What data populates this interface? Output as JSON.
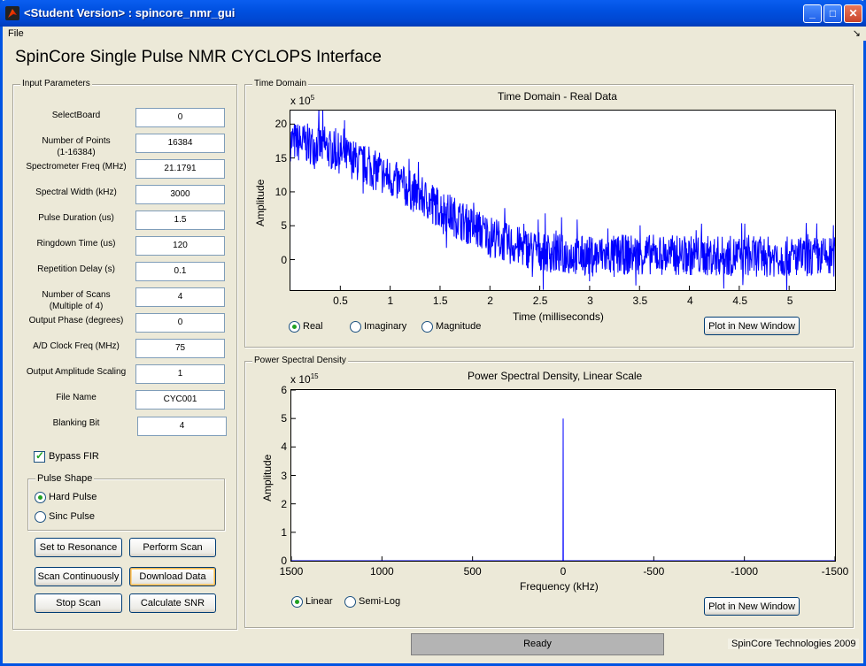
{
  "window": {
    "title": "<Student Version> : spincore_nmr_gui",
    "min": "_",
    "max": "□",
    "close": "✕"
  },
  "menu": {
    "file": "File",
    "arrow": "↘"
  },
  "app_title": "SpinCore Single Pulse NMR CYCLOPS Interface",
  "input_panel": {
    "label": "Input Parameters",
    "params": [
      {
        "label": "SelectBoard",
        "value": "0"
      },
      {
        "label": "Number of Points\n(1-16384)",
        "value": "16384"
      },
      {
        "label": "Spectrometer Freq (MHz)",
        "value": "21.1791"
      },
      {
        "label": "Spectral Width (kHz)",
        "value": "3000"
      },
      {
        "label": "Pulse Duration (us)",
        "value": "1.5"
      },
      {
        "label": "Ringdown Time (us)",
        "value": "120"
      },
      {
        "label": "Repetition Delay (s)",
        "value": "0.1"
      },
      {
        "label": "Number of Scans\n(Multiple of 4)",
        "value": "4"
      },
      {
        "label": "Output Phase (degrees)",
        "value": "0"
      },
      {
        "label": "A/D Clock Freq (MHz)",
        "value": "75"
      },
      {
        "label": "Output Amplitude Scaling",
        "value": "1"
      },
      {
        "label": "File Name",
        "value": "CYC001"
      },
      {
        "label": "Blanking Bit",
        "value": "4"
      }
    ],
    "bypass_fir": {
      "label": "Bypass FIR",
      "checked": true
    },
    "pulse_shape": {
      "label": "Pulse Shape",
      "options": [
        "Hard Pulse",
        "Sinc Pulse"
      ],
      "selected": "Hard Pulse"
    },
    "buttons": {
      "set_resonance": "Set to Resonance",
      "perform_scan": "Perform Scan",
      "scan_continuously": "Scan Continuously",
      "download_data": "Download Data",
      "stop_scan": "Stop Scan",
      "calculate_snr": "Calculate SNR"
    }
  },
  "time_panel": {
    "label": "Time Domain",
    "radio_options": [
      "Real",
      "Imaginary",
      "Magnitude"
    ],
    "selected": "Real",
    "plot_button": "Plot in New Window"
  },
  "psd_panel": {
    "label": "Power Spectral Density",
    "radio_options": [
      "Linear",
      "Semi-Log"
    ],
    "selected": "Linear",
    "plot_button": "Plot in New Window"
  },
  "status": "Ready",
  "credit": "SpinCore Technologies 2009",
  "chart_data": [
    {
      "type": "line",
      "title": "Time Domain - Real Data",
      "xlabel": "Time (milliseconds)",
      "ylabel": "Amplitude",
      "y_exponent_label": "x 10",
      "y_exponent": "5",
      "xlim": [
        0,
        5.46
      ],
      "ylim": [
        -4.5,
        22
      ],
      "xticks": [
        "0.5",
        "1",
        "1.5",
        "2",
        "2.5",
        "3",
        "3.5",
        "4",
        "4.5",
        "5"
      ],
      "yticks": [
        "20",
        "15",
        "10",
        "5",
        "0"
      ],
      "color": "#0000ff",
      "envelope": {
        "x": [
          0,
          0.3,
          0.6,
          1.0,
          1.4,
          1.8,
          2.2,
          2.6,
          3.0,
          3.5,
          4.0,
          4.5,
          5.0,
          5.46
        ],
        "y_mean": [
          17.5,
          16.8,
          15.0,
          12.0,
          8.5,
          5.0,
          2.2,
          1.0,
          0.5,
          0.8,
          0.6,
          0.5,
          0.4,
          0.4
        ],
        "spread": [
          3,
          3,
          3,
          3,
          3,
          3,
          3,
          3,
          3,
          3,
          3,
          3,
          3,
          3
        ]
      }
    },
    {
      "type": "line",
      "title": "Power Spectral Density, Linear Scale",
      "xlabel": "Frequency (kHz)",
      "ylabel": "Amplitude",
      "y_exponent_label": "x 10",
      "y_exponent": "15",
      "xlim": [
        1500,
        -1500
      ],
      "ylim": [
        0,
        6
      ],
      "xticks": [
        "1500",
        "1000",
        "500",
        "0",
        "-500",
        "-1000",
        "-1500"
      ],
      "yticks": [
        "6",
        "5",
        "4",
        "3",
        "2",
        "1",
        "0"
      ],
      "color": "#0000ff",
      "x": [
        1500,
        1,
        0,
        -1,
        -1500
      ],
      "values": [
        0,
        0,
        5.0,
        0,
        0
      ]
    }
  ]
}
